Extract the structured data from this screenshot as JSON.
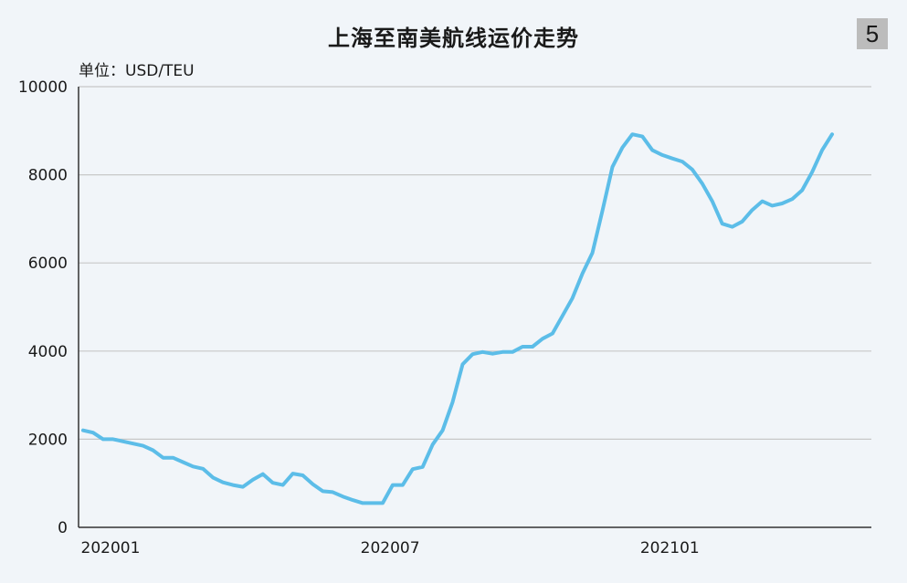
{
  "header": {
    "title": "上海至南美航线运价走势",
    "unit_label": "单位：USD/TEU",
    "page_number": "5"
  },
  "chart_data": {
    "type": "line",
    "title": "上海至南美航线运价走势",
    "ylabel": "单位：USD/TEU",
    "xlabel": "",
    "ylim": [
      0,
      10000
    ],
    "yticks": [
      0,
      2000,
      4000,
      6000,
      8000,
      10000
    ],
    "x_tick_labels": [
      {
        "label": "202001",
        "index": 0
      },
      {
        "label": "202007",
        "index": 28
      },
      {
        "label": "202101",
        "index": 56
      }
    ],
    "grid": true,
    "line_color": "#5cbde8",
    "series": [
      {
        "values": [
          2200,
          2150,
          2000,
          2000,
          1950,
          1900,
          1850,
          1750,
          1580,
          1580,
          1480,
          1380,
          1330,
          1130,
          1020,
          960,
          920,
          1080,
          1210,
          1010,
          960,
          1220,
          1180,
          980,
          820,
          800,
          700,
          620,
          550,
          550,
          550,
          960,
          960,
          1320,
          1370,
          1880,
          2200,
          2840,
          3700,
          3930,
          3980,
          3940,
          3980,
          3980,
          4100,
          4100,
          4280,
          4400,
          4800,
          5200,
          5760,
          6230,
          7180,
          8180,
          8620,
          8920,
          8870,
          8560,
          8450,
          8370,
          8300,
          8120,
          7800,
          7400,
          6890,
          6820,
          6940,
          7200,
          7400,
          7300,
          7350,
          7450,
          7650,
          8060,
          8560,
          8920
        ]
      }
    ]
  }
}
